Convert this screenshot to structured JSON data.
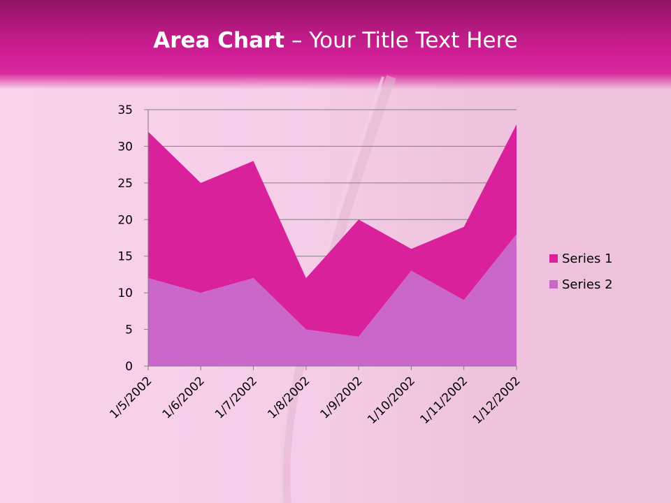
{
  "slide": {
    "title_bold": "Area Chart",
    "title_rest": " – Your Title Text Here"
  },
  "colors": {
    "series1": "#d9219c",
    "series2": "#cb67cb",
    "grid": "#808080"
  },
  "chart_data": {
    "type": "area",
    "stacked": true,
    "categories": [
      "1/5/2002",
      "1/6/2002",
      "1/7/2002",
      "1/8/2002",
      "1/9/2002",
      "1/10/2002",
      "1/11/2002",
      "1/12/2002"
    ],
    "series": [
      {
        "name": "Series 1",
        "values": [
          20,
          15,
          16,
          7,
          16,
          3,
          10,
          15
        ]
      },
      {
        "name": "Series 2",
        "values": [
          12,
          10,
          12,
          5,
          4,
          13,
          9,
          18
        ]
      }
    ],
    "ylim": [
      0,
      35
    ],
    "yticks": [
      0,
      5,
      10,
      15,
      20,
      25,
      30,
      35
    ],
    "grid": true,
    "legend_position": "right"
  }
}
